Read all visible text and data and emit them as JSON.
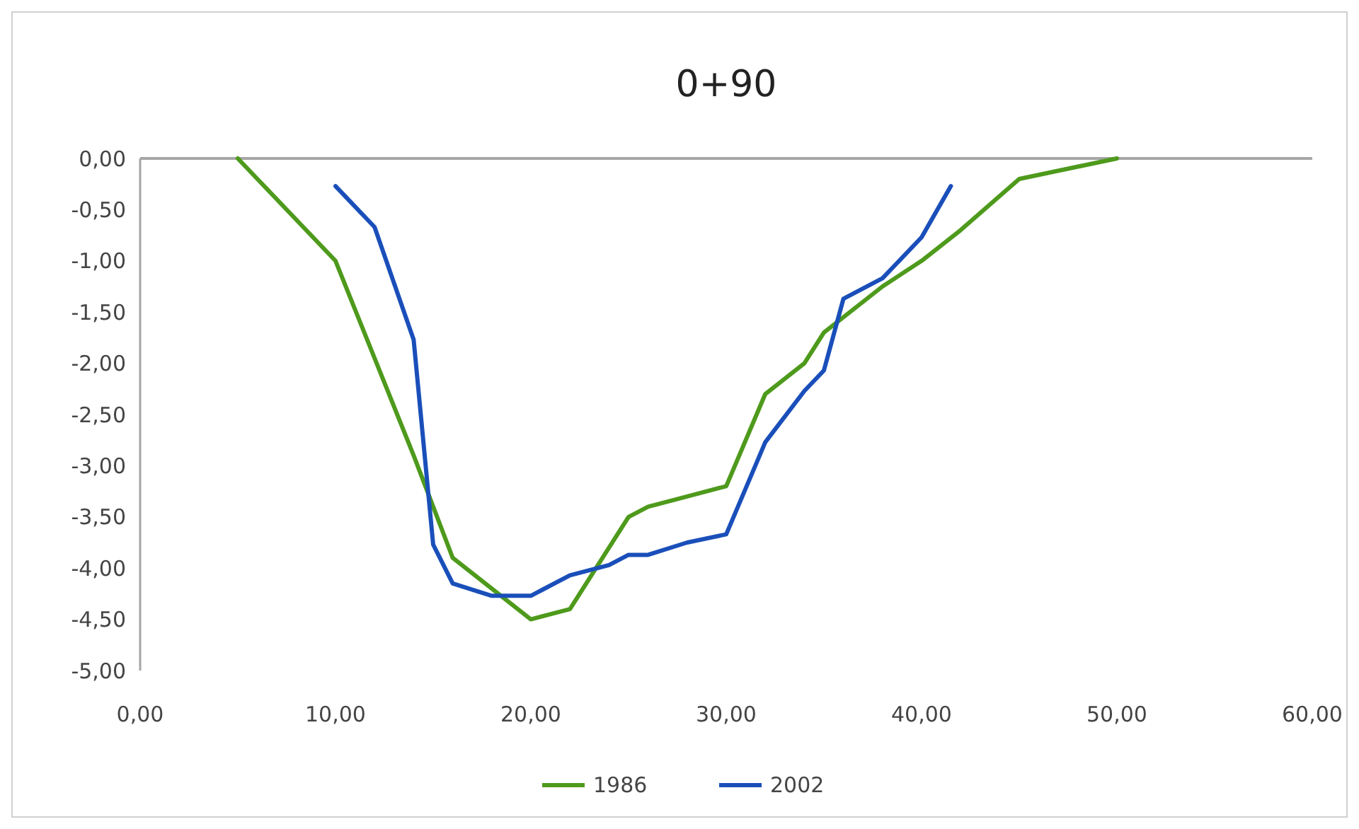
{
  "chart_data": {
    "type": "line",
    "title": "0+90",
    "xlim": [
      0,
      60
    ],
    "ylim": [
      -5,
      0
    ],
    "xticks": [
      {
        "value": 0,
        "label": "0,00"
      },
      {
        "value": 10,
        "label": "10,00"
      },
      {
        "value": 20,
        "label": "20,00"
      },
      {
        "value": 30,
        "label": "30,00"
      },
      {
        "value": 40,
        "label": "40,00"
      },
      {
        "value": 50,
        "label": "50,00"
      },
      {
        "value": 60,
        "label": "60,00"
      }
    ],
    "yticks": [
      {
        "value": 0,
        "label": "0,00"
      },
      {
        "value": -0.5,
        "label": "-0,50"
      },
      {
        "value": -1,
        "label": "-1,00"
      },
      {
        "value": -1.5,
        "label": "-1,50"
      },
      {
        "value": -2,
        "label": "-2,00"
      },
      {
        "value": -2.5,
        "label": "-2,50"
      },
      {
        "value": -3,
        "label": "-3,00"
      },
      {
        "value": -3.5,
        "label": "-3,50"
      },
      {
        "value": -4,
        "label": "-4,00"
      },
      {
        "value": -4.5,
        "label": "-4,50"
      },
      {
        "value": -5,
        "label": "-5,00"
      }
    ],
    "grid": false,
    "legend": "bottom",
    "marker": "none",
    "line_style": "solid",
    "series": [
      {
        "name": "1986",
        "color": "#4e9a1c",
        "x": [
          5,
          6,
          10,
          14,
          16,
          20,
          22,
          25,
          26,
          28,
          30,
          32,
          34,
          35,
          38,
          40,
          42,
          45,
          50
        ],
        "values": [
          0,
          -0.2,
          -1.0,
          -2.9,
          -3.9,
          -4.5,
          -4.4,
          -3.5,
          -3.4,
          -3.3,
          -3.2,
          -2.3,
          -2.0,
          -1.7,
          -1.25,
          -1.0,
          -0.7,
          -0.2,
          0
        ]
      },
      {
        "name": "2002",
        "color": "#1a4fba",
        "x": [
          10,
          12,
          14,
          15,
          16,
          18,
          20,
          22,
          24,
          25,
          26,
          28,
          30,
          32,
          34,
          35,
          36,
          38,
          40,
          41.5
        ],
        "values": [
          -0.27,
          -0.67,
          -1.77,
          -3.77,
          -4.15,
          -4.27,
          -4.27,
          -4.07,
          -3.97,
          -3.87,
          -3.87,
          -3.75,
          -3.67,
          -2.77,
          -2.27,
          -2.07,
          -1.37,
          -1.17,
          -0.77,
          -0.27
        ]
      }
    ]
  }
}
